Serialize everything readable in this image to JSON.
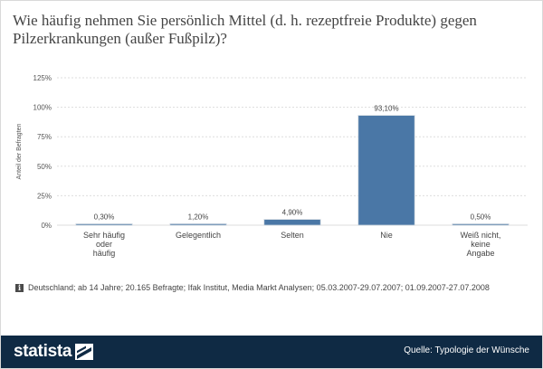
{
  "title": "Wie häufig nehmen Sie persönlich Mittel (d. h. rezeptfreie Produkte) gegen Pilzerkrankungen (außer Fußpilz)?",
  "footnote": "Deutschland; ab 14 Jahre; 20.165 Befragte; Ifak Institut, Media Markt Analysen; 05.03.2007-29.07.2007; 01.09.2007-27.07.2008",
  "footer": {
    "brand": "statista",
    "source": "Quelle: Typologie der Wünsche"
  },
  "colors": {
    "bar": "#4a77a6",
    "footer": "#0f2a44",
    "grid": "#dddddd"
  },
  "chart_data": {
    "type": "bar",
    "ylabel": "Anteil der Befragten",
    "ylim": [
      0,
      125
    ],
    "yticks": [
      0,
      25,
      50,
      75,
      100,
      125
    ],
    "ytick_labels": [
      "0%",
      "25%",
      "50%",
      "75%",
      "100%",
      "125%"
    ],
    "categories": [
      [
        "Sehr häufig",
        "oder",
        "häufig"
      ],
      [
        "Gelegentlich"
      ],
      [
        "Selten"
      ],
      [
        "Nie"
      ],
      [
        "Weiß nicht,",
        "keine",
        "Angabe"
      ]
    ],
    "values": [
      0.3,
      1.2,
      4.9,
      93.1,
      0.5
    ],
    "value_labels": [
      "0,30%",
      "1,20%",
      "4,90%",
      "93,10%",
      "0,50%"
    ],
    "grid": true
  }
}
